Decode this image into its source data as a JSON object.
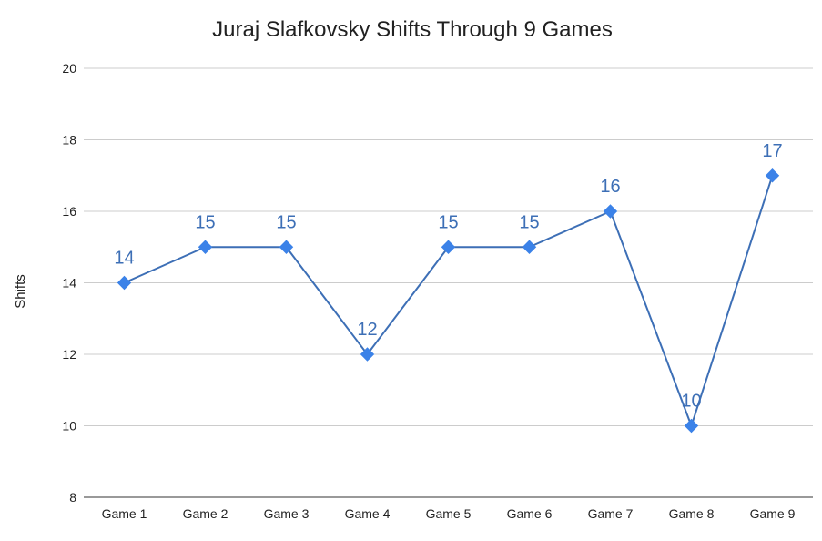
{
  "chart_data": {
    "type": "line",
    "title": "Juraj Slafkovsky Shifts Through 9 Games",
    "xlabel": "",
    "ylabel": "Shifts",
    "categories": [
      "Game 1",
      "Game 2",
      "Game 3",
      "Game 4",
      "Game 5",
      "Game 6",
      "Game 7",
      "Game 8",
      "Game 9"
    ],
    "series": [
      {
        "values": [
          14,
          15,
          15,
          12,
          15,
          15,
          16,
          10,
          17
        ]
      }
    ],
    "ylim": [
      8,
      20
    ],
    "yticks": [
      8,
      10,
      12,
      14,
      16,
      18,
      20
    ],
    "grid": true,
    "legend": "none",
    "data_labels": true,
    "colors": {
      "line": "#3d6fb6",
      "marker": "#3b82e8",
      "label": "#3d6fb6",
      "grid": "#cccccc",
      "baseline": "#333333"
    },
    "marker": "diamond"
  }
}
